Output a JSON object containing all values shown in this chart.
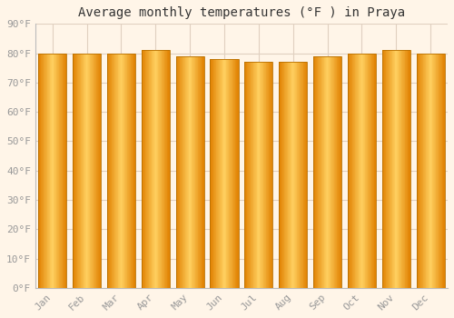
{
  "title": "Average monthly temperatures (°F ) in Praya",
  "months": [
    "Jan",
    "Feb",
    "Mar",
    "Apr",
    "May",
    "Jun",
    "Jul",
    "Aug",
    "Sep",
    "Oct",
    "Nov",
    "Dec"
  ],
  "values": [
    80,
    80,
    80,
    81,
    79,
    78,
    77,
    77,
    79,
    80,
    81,
    80
  ],
  "ylim": [
    0,
    90
  ],
  "yticks": [
    0,
    10,
    20,
    30,
    40,
    50,
    60,
    70,
    80,
    90
  ],
  "ytick_labels": [
    "0°F",
    "10°F",
    "20°F",
    "30°F",
    "40°F",
    "50°F",
    "60°F",
    "70°F",
    "80°F",
    "90°F"
  ],
  "bar_color_center": "#FFD060",
  "bar_color_edge": "#E08000",
  "bar_edge_color": "#B87000",
  "background_color": "#FFF5E8",
  "plot_bg_color": "#FFF5E8",
  "grid_color": "#E0D0C0",
  "title_fontsize": 10,
  "tick_fontsize": 8,
  "tick_color": "#999999",
  "font_family": "monospace"
}
